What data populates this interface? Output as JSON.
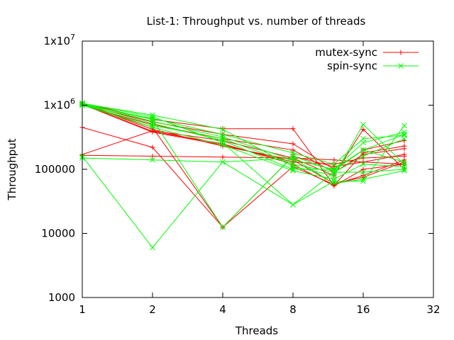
{
  "chart_data": {
    "type": "line",
    "title": "List-1: Throughput vs. number of threads",
    "xlabel": "Threads",
    "ylabel": "Throughput",
    "x_scale": "log2",
    "y_scale": "log10",
    "xlim": [
      1,
      32
    ],
    "ylim": [
      1000,
      10000000
    ],
    "x_ticks": [
      {
        "value": 1,
        "label": "1"
      },
      {
        "value": 2,
        "label": "2"
      },
      {
        "value": 4,
        "label": "4"
      },
      {
        "value": 8,
        "label": "8"
      },
      {
        "value": 16,
        "label": "16"
      },
      {
        "value": 32,
        "label": "32"
      }
    ],
    "y_ticks": [
      {
        "value": 1000,
        "label": "1000"
      },
      {
        "value": 10000,
        "label": "10000"
      },
      {
        "value": 100000,
        "label": "100000"
      },
      {
        "value": 1000000,
        "base": "1x10",
        "exp": "6"
      },
      {
        "value": 10000000,
        "base": "1x10",
        "exp": "7"
      }
    ],
    "grid": false,
    "legend_position": "top-right",
    "x": [
      1,
      2,
      4,
      8,
      12,
      16,
      24
    ],
    "series": [
      {
        "name": "mutex-sync",
        "color": "#ff0000",
        "marker": "plus",
        "lines": [
          [
            1050000,
            420000,
            230000,
            140000,
            60000,
            75000,
            130000
          ],
          [
            1040000,
            390000,
            250000,
            120000,
            55000,
            100000,
            120000
          ],
          [
            1060000,
            450000,
            12500,
            110000,
            58000,
            80000,
            140000
          ],
          [
            1030000,
            380000,
            240000,
            130000,
            120000,
            150000,
            160000
          ],
          [
            450000,
            220000,
            12500,
            160000,
            110000,
            130000,
            170000
          ],
          [
            170000,
            400000,
            280000,
            150000,
            80000,
            420000,
            100000
          ],
          [
            1080000,
            600000,
            430000,
            430000,
            56000,
            180000,
            230000
          ],
          [
            165000,
            160000,
            155000,
            150000,
            140000,
            130000,
            120000
          ],
          [
            1000000,
            500000,
            300000,
            200000,
            90000,
            170000,
            210000
          ],
          [
            1020000,
            550000,
            350000,
            250000,
            100000,
            200000,
            280000
          ]
        ]
      },
      {
        "name": "spin-sync",
        "color": "#00ff00",
        "marker": "cross",
        "lines": [
          [
            1070000,
            660000,
            260000,
            28000,
            65000,
            65000,
            480000
          ],
          [
            160000,
            6000,
            130000,
            28000,
            90000,
            90000,
            100000
          ],
          [
            150000,
            140000,
            130000,
            150000,
            60000,
            70000,
            95000
          ],
          [
            1040000,
            600000,
            12500,
            160000,
            95000,
            200000,
            350000
          ],
          [
            1050000,
            520000,
            280000,
            100000,
            100000,
            200000,
            130000
          ],
          [
            1060000,
            700000,
            420000,
            110000,
            80000,
            500000,
            120000
          ],
          [
            1030000,
            480000,
            300000,
            120000,
            90000,
            160000,
            300000
          ],
          [
            1080000,
            560000,
            320000,
            140000,
            100000,
            260000,
            380000
          ],
          [
            1000000,
            450000,
            240000,
            95000,
            70000,
            120000,
            110000
          ],
          [
            1020000,
            620000,
            350000,
            180000,
            120000,
            300000,
            340000
          ]
        ]
      }
    ]
  }
}
